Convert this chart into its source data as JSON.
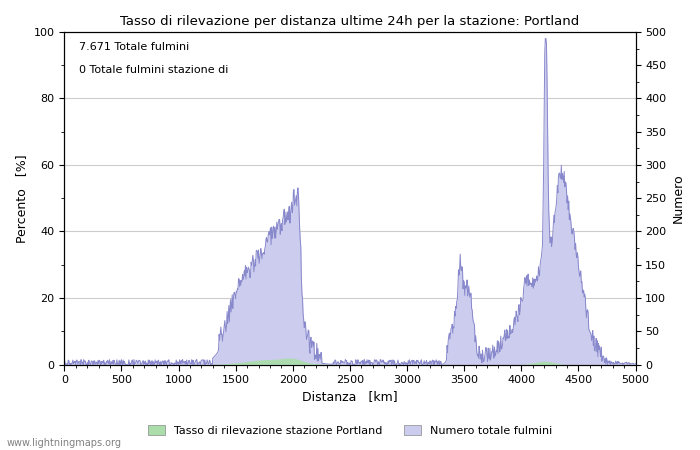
{
  "title": "Tasso di rilevazione per distanza ultime 24h per la stazione: Portland",
  "xlabel": "Distanza   [km]",
  "ylabel_left": "Percento   [%]",
  "ylabel_right": "Numero",
  "annotation_line1": "7.671 Totale fulmini",
  "annotation_line2": "0 Totale fulmini stazione di",
  "legend_green": "Tasso di rilevazione stazione Portland",
  "legend_blue": "Numero totale fulmini",
  "watermark": "www.lightningmaps.org",
  "xlim": [
    0,
    5000
  ],
  "ylim_left": [
    0,
    100
  ],
  "ylim_right": [
    0,
    500
  ],
  "xticks": [
    0,
    500,
    1000,
    1500,
    2000,
    2500,
    3000,
    3500,
    4000,
    4500,
    5000
  ],
  "yticks_left": [
    0,
    20,
    40,
    60,
    80,
    100
  ],
  "yticks_right": [
    0,
    50,
    100,
    150,
    200,
    250,
    300,
    350,
    400,
    450,
    500
  ],
  "color_blue_line": "#8888cc",
  "color_blue_fill": "#ccccee",
  "color_green_fill": "#aaddaa",
  "background_color": "#ffffff",
  "grid_color": "#cccccc"
}
